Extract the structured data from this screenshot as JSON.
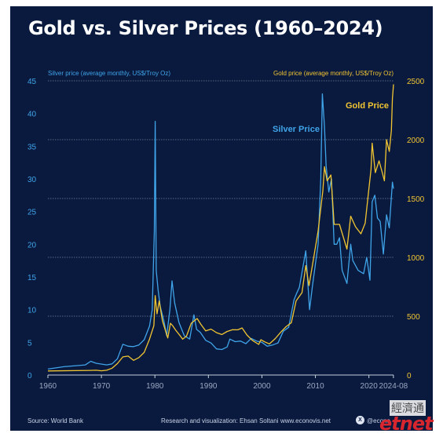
{
  "title": "Gold vs. Silver Prices (1960–2024)",
  "footer": {
    "source": "Source: World Bank",
    "research": "Research and visualization: Ehsan Soltani",
    "website": "www.econovis.net",
    "handle": "@econo",
    "x_logo": "X"
  },
  "watermark": {
    "chinese": "經濟通",
    "brand": "etnet"
  },
  "colors": {
    "background": "#0a1a3f",
    "silver": "#3fa4e8",
    "gold": "#f1c531",
    "gridline": "#6f7f9a",
    "axis_text": "#9aa8c0"
  },
  "chart_data": {
    "type": "line",
    "title": "Gold vs. Silver Prices (1960–2024)",
    "x_ticks": [
      "1960",
      "1970",
      "1980",
      "1990",
      "2000",
      "2010",
      "2020",
      "2024-08"
    ],
    "xlim": [
      1960,
      2024.6
    ],
    "left_axis": {
      "label": "Silver price (average monthly, US$/Troy Oz)",
      "range": [
        0,
        45
      ],
      "ticks": [
        0,
        5,
        10,
        15,
        20,
        25,
        30,
        35,
        40,
        45
      ]
    },
    "right_axis": {
      "label": "Gold price (average monthly, US$/Troy Oz)",
      "range": [
        0,
        2500
      ],
      "ticks": [
        0,
        500,
        1000,
        1500,
        2000,
        2500
      ]
    },
    "annotations": [
      "Silver Price",
      "Gold Price"
    ],
    "grid": "horizontal dotted",
    "series": [
      {
        "name": "Silver Price",
        "axis": "left",
        "points": [
          [
            1960,
            0.91
          ],
          [
            1963,
            1.27
          ],
          [
            1967,
            1.55
          ],
          [
            1968,
            2.1
          ],
          [
            1969,
            1.8
          ],
          [
            1971,
            1.55
          ],
          [
            1972,
            1.7
          ],
          [
            1973,
            2.5
          ],
          [
            1974,
            4.7
          ],
          [
            1975,
            4.4
          ],
          [
            1976,
            4.35
          ],
          [
            1977,
            4.6
          ],
          [
            1978,
            5.4
          ],
          [
            1979,
            7.5
          ],
          [
            1979.5,
            10
          ],
          [
            1979.9,
            22
          ],
          [
            1980.05,
            38.8
          ],
          [
            1980.25,
            16
          ],
          [
            1980.6,
            13
          ],
          [
            1981,
            10.5
          ],
          [
            1981.7,
            8.2
          ],
          [
            1982.2,
            6
          ],
          [
            1982.8,
            10
          ],
          [
            1983.2,
            14.4
          ],
          [
            1983.7,
            11
          ],
          [
            1984.5,
            8
          ],
          [
            1985.5,
            6
          ],
          [
            1986.5,
            5.5
          ],
          [
            1987.3,
            9.2
          ],
          [
            1987.8,
            7
          ],
          [
            1988.5,
            6.5
          ],
          [
            1989.5,
            5.3
          ],
          [
            1990.5,
            4.9
          ],
          [
            1991.5,
            4
          ],
          [
            1992.5,
            3.9
          ],
          [
            1993.5,
            4.3
          ],
          [
            1994,
            5.5
          ],
          [
            1995,
            5.1
          ],
          [
            1996,
            5.2
          ],
          [
            1997,
            4.8
          ],
          [
            1998,
            5.6
          ],
          [
            1999,
            5.2
          ],
          [
            2000,
            5
          ],
          [
            2001,
            4.4
          ],
          [
            2002,
            4.6
          ],
          [
            2003,
            4.9
          ],
          [
            2004,
            6.7
          ],
          [
            2005,
            7.3
          ],
          [
            2006,
            11.5
          ],
          [
            2006.5,
            12.5
          ],
          [
            2007,
            13.4
          ],
          [
            2008.2,
            19
          ],
          [
            2008.9,
            10
          ],
          [
            2009.5,
            14
          ],
          [
            2010,
            17
          ],
          [
            2010.5,
            20
          ],
          [
            2011,
            30
          ],
          [
            2011.3,
            43
          ],
          [
            2011.7,
            38
          ],
          [
            2012,
            32
          ],
          [
            2012.5,
            28
          ],
          [
            2013,
            30
          ],
          [
            2013.5,
            20
          ],
          [
            2014,
            20
          ],
          [
            2014.5,
            21
          ],
          [
            2015,
            16
          ],
          [
            2015.9,
            14
          ],
          [
            2016.6,
            20
          ],
          [
            2017,
            17.5
          ],
          [
            2018,
            16
          ],
          [
            2019,
            15.5
          ],
          [
            2019.6,
            18
          ],
          [
            2020.2,
            14.5
          ],
          [
            2020.6,
            26.5
          ],
          [
            2021.1,
            27.5
          ],
          [
            2021.6,
            24
          ],
          [
            2022.1,
            23.5
          ],
          [
            2022.7,
            18.5
          ],
          [
            2023.3,
            24.5
          ],
          [
            2023.8,
            22.5
          ],
          [
            2024.4,
            29.5
          ],
          [
            2024.6,
            28.5
          ]
        ]
      },
      {
        "name": "Gold Price",
        "axis": "right",
        "points": [
          [
            1960,
            35
          ],
          [
            1968,
            39
          ],
          [
            1969,
            41
          ],
          [
            1970,
            36
          ],
          [
            1971,
            41
          ],
          [
            1972,
            58
          ],
          [
            1973,
            97
          ],
          [
            1974,
            154
          ],
          [
            1975,
            161
          ],
          [
            1976,
            125
          ],
          [
            1977,
            148
          ],
          [
            1978,
            193
          ],
          [
            1979,
            306
          ],
          [
            1979.8,
            420
          ],
          [
            1980.05,
            675
          ],
          [
            1980.4,
            520
          ],
          [
            1980.8,
            630
          ],
          [
            1981.4,
            460
          ],
          [
            1982.4,
            315
          ],
          [
            1982.9,
            440
          ],
          [
            1983.3,
            420
          ],
          [
            1983.9,
            380
          ],
          [
            1984.6,
            340
          ],
          [
            1985.2,
            305
          ],
          [
            1985.9,
            330
          ],
          [
            1986.8,
            440
          ],
          [
            1987.9,
            480
          ],
          [
            1988.6,
            430
          ],
          [
            1989.5,
            375
          ],
          [
            1990.5,
            390
          ],
          [
            1991.5,
            360
          ],
          [
            1992.5,
            344
          ],
          [
            1993.5,
            370
          ],
          [
            1994.5,
            385
          ],
          [
            1995.5,
            384
          ],
          [
            1996.3,
            400
          ],
          [
            1997.2,
            340
          ],
          [
            1998.2,
            295
          ],
          [
            1999.4,
            260
          ],
          [
            1999.8,
            300
          ],
          [
            2000.5,
            282
          ],
          [
            2001.4,
            264
          ],
          [
            2002.5,
            310
          ],
          [
            2003.5,
            363
          ],
          [
            2004.5,
            410
          ],
          [
            2005.5,
            445
          ],
          [
            2006.4,
            630
          ],
          [
            2007.5,
            700
          ],
          [
            2008.2,
            930
          ],
          [
            2008.8,
            760
          ],
          [
            2009.5,
            950
          ],
          [
            2010.5,
            1225
          ],
          [
            2011.4,
            1570
          ],
          [
            2011.7,
            1770
          ],
          [
            2012.2,
            1650
          ],
          [
            2012.9,
            1700
          ],
          [
            2013.5,
            1280
          ],
          [
            2014.5,
            1280
          ],
          [
            2015.9,
            1070
          ],
          [
            2016.6,
            1350
          ],
          [
            2017.5,
            1260
          ],
          [
            2018.5,
            1200
          ],
          [
            2019.3,
            1290
          ],
          [
            2019.8,
            1500
          ],
          [
            2020.4,
            1750
          ],
          [
            2020.6,
            1970
          ],
          [
            2021.2,
            1720
          ],
          [
            2021.9,
            1820
          ],
          [
            2022.5,
            1720
          ],
          [
            2022.9,
            1650
          ],
          [
            2023.3,
            2000
          ],
          [
            2023.8,
            1900
          ],
          [
            2024.2,
            2080
          ],
          [
            2024.4,
            2350
          ],
          [
            2024.6,
            2470
          ]
        ]
      }
    ]
  }
}
